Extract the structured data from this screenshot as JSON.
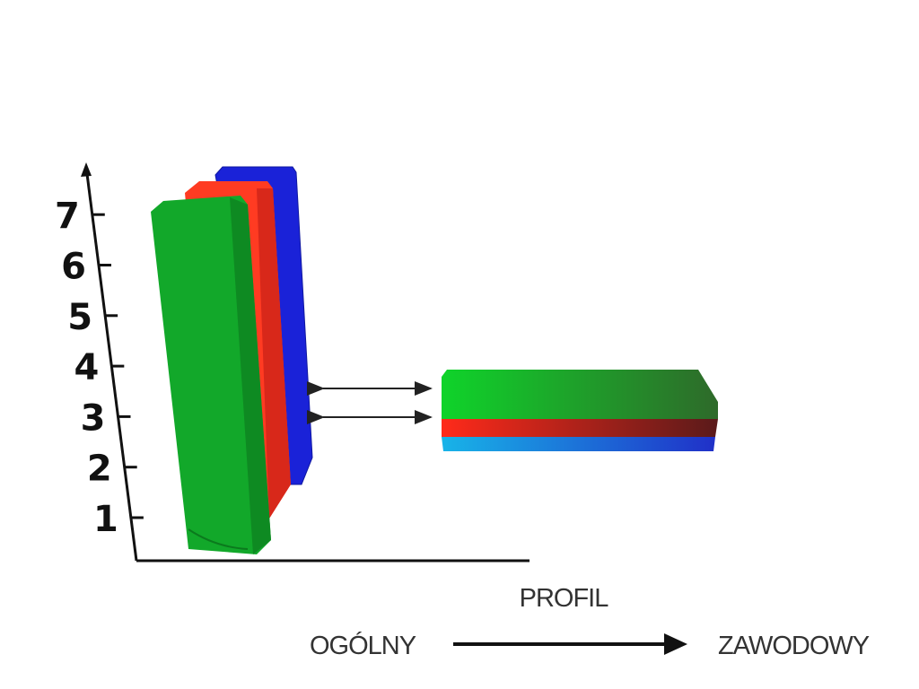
{
  "y_axis": {
    "ticks": [
      1,
      2,
      3,
      4,
      5,
      6,
      7
    ]
  },
  "labels": {
    "axis_title": "PROFIL",
    "left_end": "OGÓLNY",
    "right_end": "ZAWODOWY"
  }
}
